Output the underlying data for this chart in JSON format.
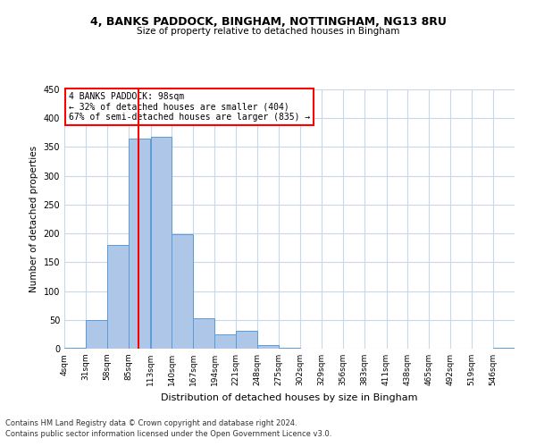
{
  "title1": "4, BANKS PADDOCK, BINGHAM, NOTTINGHAM, NG13 8RU",
  "title2": "Size of property relative to detached houses in Bingham",
  "xlabel": "Distribution of detached houses by size in Bingham",
  "ylabel": "Number of detached properties",
  "footer1": "Contains HM Land Registry data © Crown copyright and database right 2024.",
  "footer2": "Contains public sector information licensed under the Open Government Licence v3.0.",
  "annotation_line1": "4 BANKS PADDOCK: 98sqm",
  "annotation_line2": "← 32% of detached houses are smaller (404)",
  "annotation_line3": "67% of semi-detached houses are larger (835) →",
  "bar_color": "#aec6e8",
  "bar_edge_color": "#5b9bd5",
  "red_line_x": 98,
  "categories": [
    "4sqm",
    "31sqm",
    "58sqm",
    "85sqm",
    "113sqm",
    "140sqm",
    "167sqm",
    "194sqm",
    "221sqm",
    "248sqm",
    "275sqm",
    "302sqm",
    "329sqm",
    "356sqm",
    "383sqm",
    "411sqm",
    "438sqm",
    "465sqm",
    "492sqm",
    "519sqm",
    "546sqm"
  ],
  "bin_edges": [
    4,
    31,
    58,
    85,
    113,
    140,
    167,
    194,
    221,
    248,
    275,
    302,
    329,
    356,
    383,
    411,
    438,
    465,
    492,
    519,
    546
  ],
  "values": [
    2,
    50,
    180,
    365,
    368,
    198,
    53,
    25,
    31,
    6,
    2,
    0,
    0,
    0,
    0,
    0,
    0,
    0,
    0,
    0,
    2
  ],
  "ylim": [
    0,
    450
  ],
  "yticks": [
    0,
    50,
    100,
    150,
    200,
    250,
    300,
    350,
    400,
    450
  ],
  "background_color": "#ffffff",
  "grid_color": "#c8d8e8"
}
